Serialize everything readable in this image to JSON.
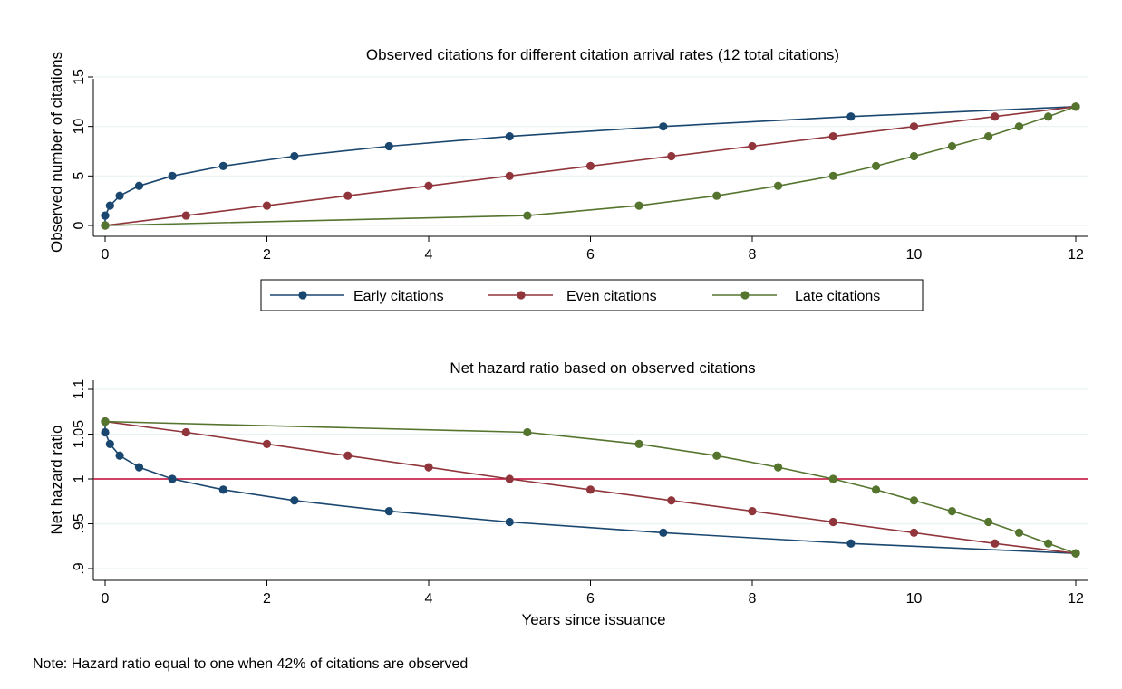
{
  "colors": {
    "early": "#1a476f",
    "even": "#90353b",
    "late": "#55752f",
    "reference_line": "#c10534",
    "grid": "#eaf2f3"
  },
  "note": "Note: Hazard ratio equal to one when 42% of citations are observed",
  "legend": {
    "placement": "below top panel",
    "labels": [
      "Early citations",
      "Even citations",
      "Late citations"
    ]
  },
  "chart_data": [
    {
      "type": "line",
      "title": "Observed citations for different citation arrival rates (12 total citations)",
      "xlabel": "",
      "ylabel": "Observed number of citations",
      "xlim": [
        0,
        12
      ],
      "ylim": [
        0,
        15
      ],
      "xticks": [
        0,
        2,
        4,
        6,
        8,
        10,
        12
      ],
      "xtick_labels": [
        "0",
        "2",
        "4",
        "6",
        "8",
        "10",
        "12"
      ],
      "yticks": [
        0,
        5,
        10,
        15
      ],
      "ytick_labels": [
        "0",
        "5",
        "10",
        "15"
      ],
      "grid": true,
      "series": [
        {
          "name": "Early citations",
          "color": "#1a476f",
          "x": [
            0,
            0,
            0.06,
            0.18,
            0.42,
            0.83,
            1.46,
            2.34,
            3.51,
            5.0,
            6.9,
            9.22,
            12
          ],
          "y": [
            0,
            1,
            2,
            3,
            4,
            5,
            6,
            7,
            8,
            9,
            10,
            11,
            12
          ]
        },
        {
          "name": "Even citations",
          "color": "#90353b",
          "x": [
            0,
            1,
            2,
            3,
            4,
            5,
            6,
            7,
            8,
            9,
            10,
            11,
            12
          ],
          "y": [
            0,
            1,
            2,
            3,
            4,
            5,
            6,
            7,
            8,
            9,
            10,
            11,
            12
          ]
        },
        {
          "name": "Late citations",
          "color": "#55752f",
          "x": [
            0,
            5.22,
            6.6,
            7.56,
            8.32,
            9.0,
            9.53,
            10.0,
            10.47,
            10.92,
            11.3,
            11.66,
            12
          ],
          "y": [
            0,
            1,
            2,
            3,
            4,
            5,
            6,
            7,
            8,
            9,
            10,
            11,
            12
          ]
        }
      ]
    },
    {
      "type": "line",
      "title": "Net hazard ratio based on observed citations",
      "xlabel": "Years since issuance",
      "ylabel": "Net hazard ratio",
      "xlim": [
        0,
        12
      ],
      "ylim": [
        0.9,
        1.1
      ],
      "xticks": [
        0,
        2,
        4,
        6,
        8,
        10,
        12
      ],
      "xtick_labels": [
        "0",
        "2",
        "4",
        "6",
        "8",
        "10",
        "12"
      ],
      "yticks": [
        0.9,
        0.95,
        1.0,
        1.05,
        1.1
      ],
      "ytick_labels": [
        ".9",
        ".95",
        "1",
        "1.05",
        "1.1"
      ],
      "grid": true,
      "reference_line": {
        "y": 1.0,
        "color": "#c10534"
      },
      "series": [
        {
          "name": "Early citations",
          "color": "#1a476f",
          "x": [
            0,
            0,
            0.06,
            0.18,
            0.42,
            0.83,
            1.46,
            2.34,
            3.51,
            5.0,
            6.9,
            9.22,
            12
          ],
          "y": [
            1.064,
            1.052,
            1.039,
            1.026,
            1.013,
            1.0,
            0.988,
            0.976,
            0.964,
            0.952,
            0.94,
            0.928,
            0.917
          ]
        },
        {
          "name": "Even citations",
          "color": "#90353b",
          "x": [
            0,
            1,
            2,
            3,
            4,
            5,
            6,
            7,
            8,
            9,
            10,
            11,
            12
          ],
          "y": [
            1.064,
            1.052,
            1.039,
            1.026,
            1.013,
            1.0,
            0.988,
            0.976,
            0.964,
            0.952,
            0.94,
            0.928,
            0.917
          ]
        },
        {
          "name": "Late citations",
          "color": "#55752f",
          "x": [
            0,
            5.22,
            6.6,
            7.56,
            8.32,
            9.0,
            9.53,
            10.0,
            10.47,
            10.92,
            11.3,
            11.66,
            12
          ],
          "y": [
            1.064,
            1.052,
            1.039,
            1.026,
            1.013,
            1.0,
            0.988,
            0.976,
            0.964,
            0.952,
            0.94,
            0.928,
            0.917
          ]
        }
      ]
    }
  ]
}
